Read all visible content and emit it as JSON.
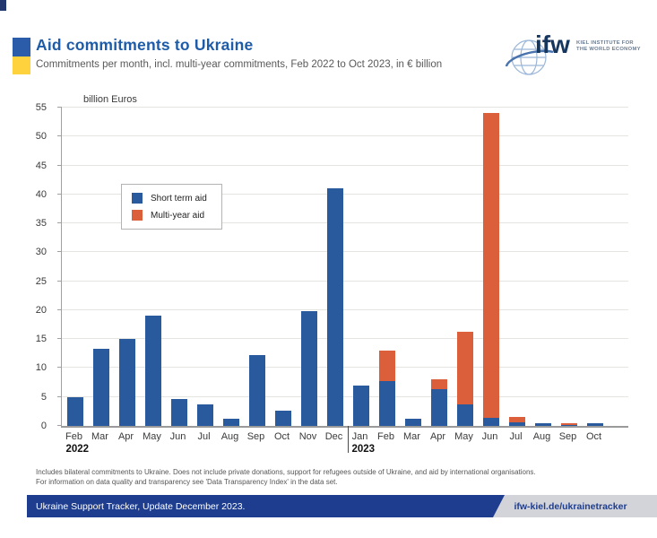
{
  "header": {
    "title": "Aid commitments to Ukraine",
    "subtitle": "Commitments per month, incl. multi-year commitments, Feb 2022 to Oct 2023, in € billion",
    "logo": {
      "short": "ifw",
      "line1": "KIEL INSTITUTE FOR",
      "line2": "THE WORLD ECONOMY"
    }
  },
  "chart_data": {
    "type": "bar",
    "stacked": true,
    "title": "Aid commitments to Ukraine",
    "ylabel": "billion Euros",
    "xlabel": "",
    "ylim": [
      0,
      55
    ],
    "ytick_step": 5,
    "grid": true,
    "legend_position": "upper-left-inside",
    "categories": [
      "Feb",
      "Mar",
      "Apr",
      "May",
      "Jun",
      "Jul",
      "Aug",
      "Sep",
      "Oct",
      "Nov",
      "Dec",
      "Jan",
      "Feb",
      "Mar",
      "Apr",
      "May",
      "Jun",
      "Jul",
      "Aug",
      "Sep",
      "Oct"
    ],
    "year_breaks": [
      {
        "index": 0,
        "year": "2022"
      },
      {
        "index": 11,
        "year": "2023"
      }
    ],
    "series": [
      {
        "name": "Short term aid",
        "color": "#2a5a9e",
        "values": [
          5.0,
          13.4,
          15.0,
          19.0,
          4.6,
          3.7,
          1.2,
          12.3,
          2.6,
          19.8,
          41.0,
          6.9,
          7.8,
          1.3,
          6.3,
          3.7,
          1.4,
          0.6,
          0.5,
          0.2,
          0.5
        ]
      },
      {
        "name": "Multi-year aid",
        "color": "#dc5f3b",
        "values": [
          0,
          0,
          0,
          0,
          0,
          0,
          0,
          0,
          0,
          0,
          0,
          0,
          5.2,
          0,
          1.7,
          12.5,
          52.6,
          0.9,
          0,
          0.2,
          0
        ]
      }
    ]
  },
  "footnote": {
    "line1": "Includes bilateral commitments to Ukraine. Does not include private donations, support for refugees outside of Ukraine, and aid by international organisations.",
    "line2": "For information on data quality and transparency see 'Data Transparency Index' in the data set."
  },
  "footer": {
    "banner": "Ukraine Support Tracker, Update December 2023.",
    "link": "ifw-kiel.de/ukrainetracker"
  },
  "colors": {
    "title_blue": "#1e5ba8",
    "flag_blue": "#2a5caa",
    "flag_yellow": "#fdd23c",
    "short_term_bar": "#2a5a9e",
    "multi_year_bar": "#dc5f3b",
    "footer_banner_blue": "#1e3d8f",
    "footer_panel_gray": "#d2d4d9"
  }
}
